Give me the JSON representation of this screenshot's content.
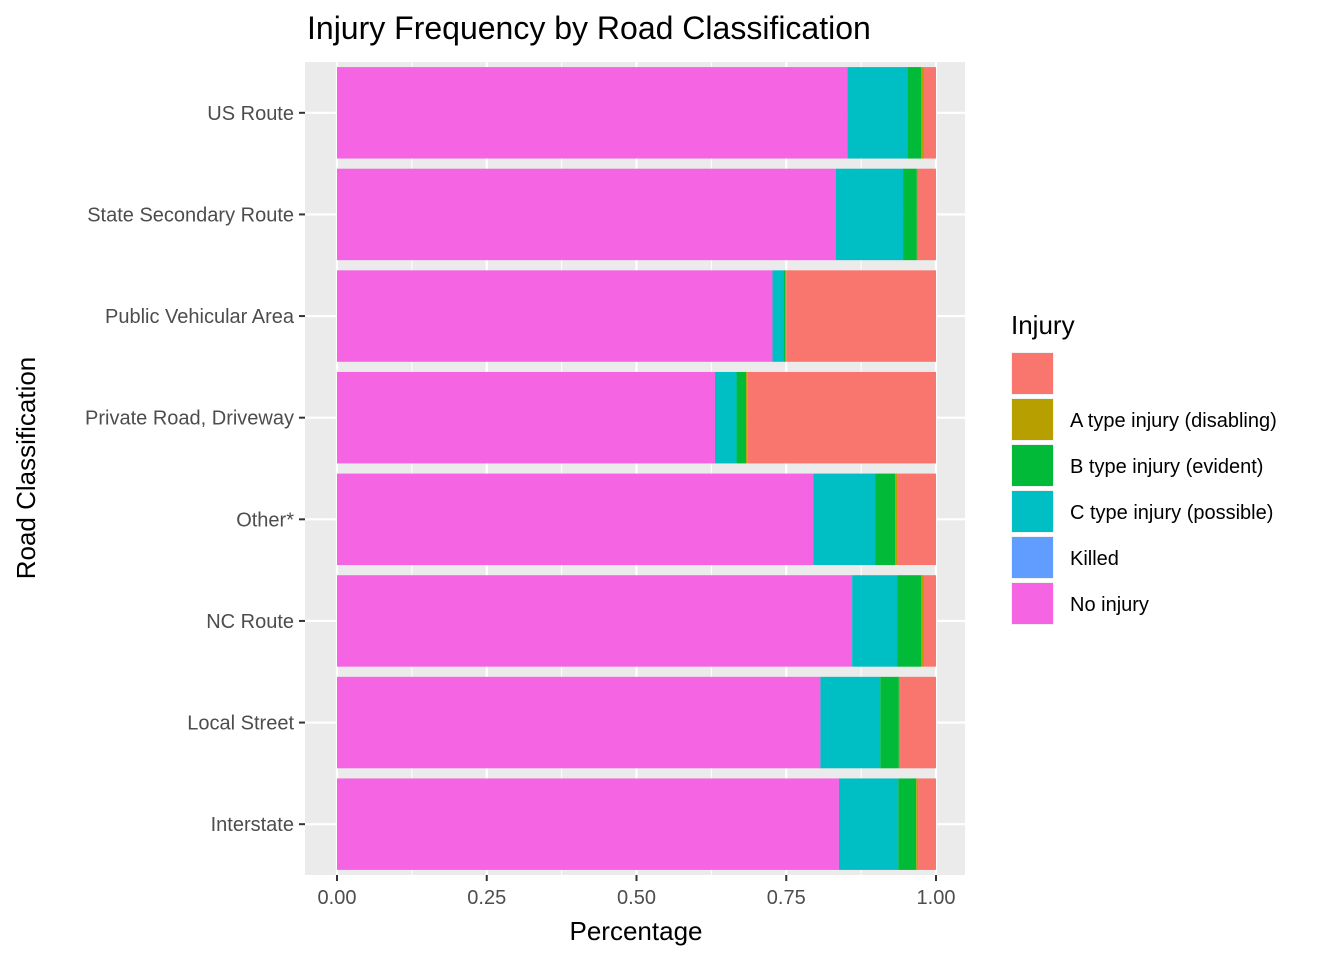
{
  "chart_data": {
    "type": "bar",
    "orientation": "horizontal",
    "stacked": true,
    "title": "Injury Frequency by Road Classification",
    "xlabel": "Percentage",
    "ylabel": "Road Classification",
    "xlim": [
      0,
      1
    ],
    "x_ticks": [
      "0.00",
      "0.25",
      "0.50",
      "0.75",
      "1.00"
    ],
    "x_tick_values": [
      0,
      0.25,
      0.5,
      0.75,
      1.0
    ],
    "grid": true,
    "categories": [
      "US Route",
      "State Secondary Route",
      "Public Vehicular Area",
      "Private Road, Driveway",
      "Other*",
      "NC Route",
      "Local Street",
      "Interstate"
    ],
    "stack_order": [
      "No injury",
      "Killed",
      "C type injury (possible)",
      "B type injury (evident)",
      "A type injury (disabling)",
      ""
    ],
    "series": [
      {
        "name": "",
        "color": "#F8766D",
        "values": [
          0.02,
          0.03,
          0.25,
          0.315,
          0.065,
          0.02,
          0.06,
          0.03
        ]
      },
      {
        "name": "A type injury (disabling)",
        "color": "#B79F00",
        "values": [
          0.005,
          0.002,
          0.002,
          0.002,
          0.003,
          0.005,
          0.002,
          0.003
        ]
      },
      {
        "name": "B type injury (evident)",
        "color": "#00BA38",
        "values": [
          0.023,
          0.023,
          0.003,
          0.016,
          0.033,
          0.04,
          0.031,
          0.03
        ]
      },
      {
        "name": "C type injury (possible)",
        "color": "#00BFC4",
        "values": [
          0.1,
          0.112,
          0.018,
          0.036,
          0.104,
          0.075,
          0.1,
          0.099
        ]
      },
      {
        "name": "Killed",
        "color": "#619CFF",
        "values": [
          0.0,
          0.0,
          0.0,
          0.0,
          0.0,
          0.0,
          0.0,
          0.0
        ]
      },
      {
        "name": "No injury",
        "color": "#F564E3",
        "values": [
          0.852,
          0.833,
          0.727,
          0.631,
          0.795,
          0.86,
          0.807,
          0.838
        ]
      }
    ],
    "legend": {
      "title": "Injury",
      "placement": "right",
      "entries": [
        "",
        "A type injury (disabling)",
        "B type injury (evident)",
        "C type injury (possible)",
        "Killed",
        "No injury"
      ]
    },
    "colors": {
      "panel_background": "#EBEBEB",
      "grid_major": "#FFFFFF",
      "tick_text": "#4D4D4D",
      "tick_mark": "#333333"
    }
  }
}
